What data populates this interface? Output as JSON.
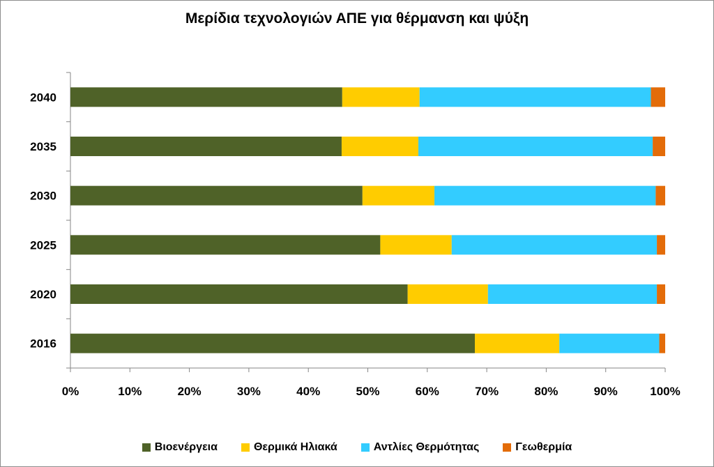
{
  "chart_data": {
    "type": "bar",
    "orientation": "horizontal",
    "stacked": "percent",
    "title": "Μερίδια τεχνολογιών ΑΠΕ για θέρμανση και ψύξη",
    "xlabel": "",
    "ylabel": "",
    "categories": [
      "2040",
      "2035",
      "2030",
      "2025",
      "2020",
      "2016"
    ],
    "xlim": [
      0,
      100
    ],
    "x_ticks": [
      "0%",
      "10%",
      "20%",
      "30%",
      "40%",
      "50%",
      "60%",
      "70%",
      "80%",
      "90%",
      "100%"
    ],
    "grid": false,
    "legend_position": "bottom",
    "series": [
      {
        "name": "Βιοενέργεια",
        "color": "#4f6228",
        "values": [
          45.7,
          45.6,
          49.1,
          52.1,
          56.7,
          68.0
        ]
      },
      {
        "name": "Θερμικά Ηλιακά",
        "color": "#ffcc00",
        "values": [
          13.0,
          12.9,
          12.1,
          12.0,
          13.5,
          14.2
        ]
      },
      {
        "name": "Αντλίες Θερμότητας",
        "color": "#33ccff",
        "values": [
          38.9,
          39.4,
          37.2,
          34.5,
          28.4,
          16.8
        ]
      },
      {
        "name": "Γεωθερμία",
        "color": "#e36c09",
        "values": [
          2.4,
          2.1,
          1.6,
          1.4,
          1.4,
          1.0
        ]
      }
    ]
  }
}
